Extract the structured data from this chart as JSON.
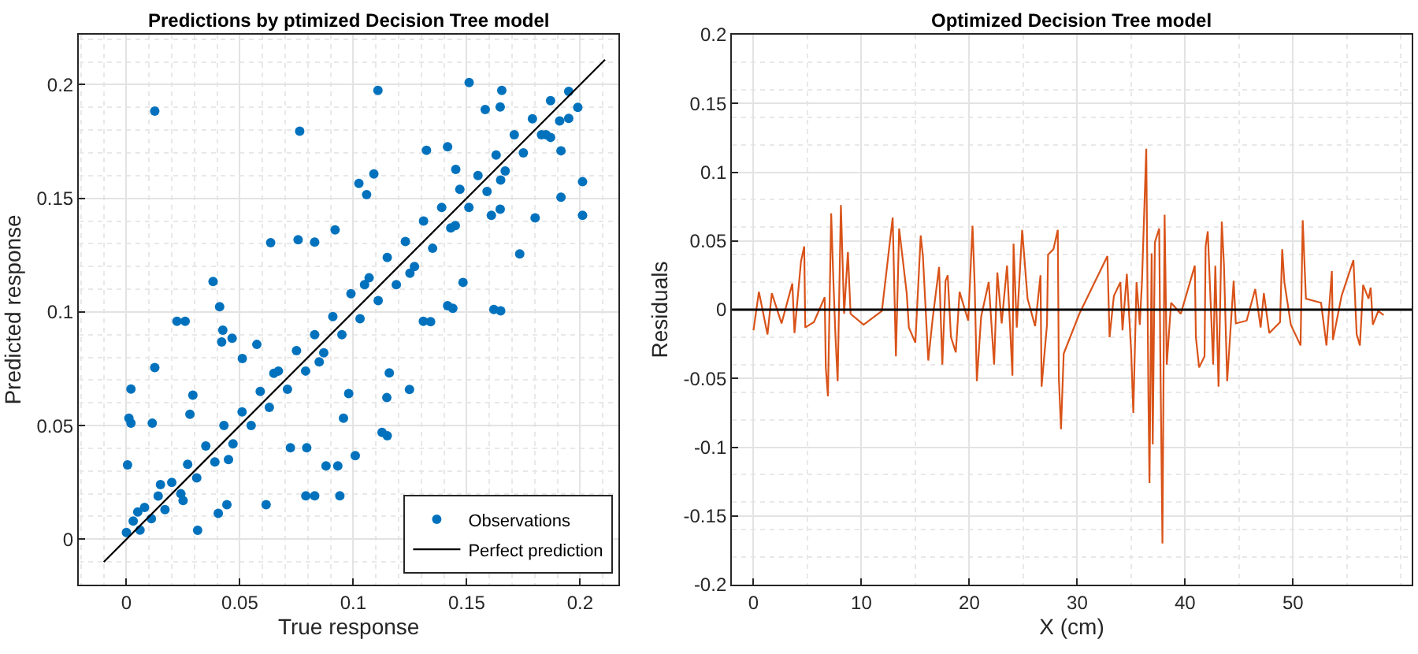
{
  "chart_data": [
    {
      "type": "scatter",
      "title": "Predictions by ptimized Decision Tree model",
      "xlabel": "True response",
      "ylabel": "Predicted response",
      "xlim": [
        -0.021,
        0.217
      ],
      "ylim": [
        -0.02,
        0.222
      ],
      "xticks": [
        0,
        0.05,
        0.1,
        0.15,
        0.2
      ],
      "yticks": [
        0,
        0.05,
        0.1,
        0.15,
        0.2
      ],
      "grid": true,
      "legend": "bottom right",
      "marker": "circle",
      "series": [
        {
          "name": "Observations",
          "color": "#0072bd",
          "x": [
            0.0125,
            0.0764,
            0.1109,
            0.1511,
            0.1655,
            0.0636,
            0.0757,
            0.083,
            0.0382,
            0.0411,
            0.0223,
            0.0259,
            0.0425,
            0.042,
            0.0466,
            0.0511,
            0.0575,
            0.0125,
            0.002,
            0.0011,
            0.002,
            0.0114,
            0.0293,
            0.028,
            0.0005,
            0.0314,
            0.0616,
            0.0443,
            0.0405,
            0.0791,
            0.083,
            0.0941,
            0.088,
            0.0932,
            0.1009,
            0.0723,
            0.0795,
            0.1127,
            0.115,
            0.0957,
            0.098,
            0.1159,
            0.1248,
            0.1148,
            0.1309,
            0.1341,
            0.1416,
            0.1439,
            0.162,
            0.165,
            0.1484,
            0.1734,
            0.1916,
            0.2011,
            0.2011,
            0.1802,
            0.1025,
            0.1091,
            0.1059,
            0.092,
            0.1323,
            0.1416,
            0.1452,
            0.1582,
            0.1648,
            0.187,
            0.1916,
            0.195,
            0.1648,
            0.1609,
            0.0,
            0.003,
            0.006,
            0.008,
            0.011,
            0.014,
            0.017,
            0.02,
            0.024,
            0.027,
            0.031,
            0.035,
            0.039,
            0.043,
            0.047,
            0.051,
            0.055,
            0.059,
            0.063,
            0.067,
            0.071,
            0.075,
            0.079,
            0.083,
            0.087,
            0.091,
            0.095,
            0.099,
            0.103,
            0.107,
            0.111,
            0.115,
            0.119,
            0.123,
            0.127,
            0.131,
            0.135,
            0.139,
            0.143,
            0.147,
            0.151,
            0.155,
            0.159,
            0.163,
            0.167,
            0.171,
            0.175,
            0.179,
            0.183,
            0.187,
            0.191,
            0.195,
            0.199,
            0.005,
            0.015,
            0.025,
            0.045,
            0.065,
            0.085,
            0.105,
            0.125,
            0.145,
            0.165,
            0.185
          ],
          "values": [
            0.1884,
            0.1795,
            0.1975,
            0.2009,
            0.1975,
            0.1305,
            0.1318,
            0.1307,
            0.1134,
            0.1023,
            0.0959,
            0.0959,
            0.092,
            0.0868,
            0.0884,
            0.0795,
            0.0857,
            0.0755,
            0.0661,
            0.0532,
            0.0511,
            0.0511,
            0.0634,
            0.055,
            0.0327,
            0.0039,
            0.0152,
            0.0152,
            0.0114,
            0.0191,
            0.0191,
            0.0191,
            0.0323,
            0.0323,
            0.0368,
            0.0402,
            0.0402,
            0.047,
            0.0455,
            0.0532,
            0.0641,
            0.0732,
            0.0659,
            0.0623,
            0.0959,
            0.0957,
            0.1027,
            0.1016,
            0.1011,
            0.1005,
            0.113,
            0.1255,
            0.1505,
            0.1573,
            0.1425,
            0.1414,
            0.1566,
            0.1607,
            0.1516,
            0.1361,
            0.1711,
            0.1727,
            0.1627,
            0.1891,
            0.1902,
            0.1768,
            0.1709,
            0.1852,
            0.1452,
            0.1425,
            0.003,
            0.008,
            0.004,
            0.014,
            0.009,
            0.019,
            0.013,
            0.025,
            0.02,
            0.033,
            0.027,
            0.041,
            0.034,
            0.05,
            0.042,
            0.056,
            0.05,
            0.065,
            0.058,
            0.074,
            0.066,
            0.083,
            0.074,
            0.09,
            0.082,
            0.098,
            0.09,
            0.108,
            0.097,
            0.115,
            0.105,
            0.124,
            0.112,
            0.131,
            0.12,
            0.14,
            0.128,
            0.146,
            0.137,
            0.154,
            0.146,
            0.16,
            0.153,
            0.169,
            0.162,
            0.178,
            0.17,
            0.185,
            0.178,
            0.193,
            0.184,
            0.197,
            0.19,
            0.012,
            0.024,
            0.017,
            0.035,
            0.073,
            0.078,
            0.112,
            0.117,
            0.138,
            0.158,
            0.178
          ]
        },
        {
          "name": "Perfect prediction",
          "type": "line",
          "marker": "none",
          "color": "#000000",
          "x": [
            -0.01,
            0.211
          ],
          "values": [
            -0.01,
            0.211
          ]
        }
      ]
    },
    {
      "type": "line",
      "title": "Optimized Decision Tree model",
      "xlabel": "X (cm)",
      "ylabel": "Residuals",
      "xlim": [
        -2,
        61
      ],
      "ylim": [
        -0.2,
        0.2
      ],
      "xticks": [
        0,
        10,
        20,
        30,
        40,
        50
      ],
      "yticks": [
        -0.2,
        -0.15,
        -0.1,
        -0.05,
        0,
        0.05,
        0.1,
        0.15,
        0.2
      ],
      "grid": true,
      "ref_lines": [
        {
          "axis": "y",
          "value": 0,
          "color": "#000000"
        }
      ],
      "series": [
        {
          "color": "#d95319",
          "x": [
            0,
            0.5,
            1.3,
            1.7,
            2.6,
            3.6,
            3.8,
            4.4,
            4.7,
            4.8,
            5.6,
            6.6,
            6.7,
            6.9,
            7.2,
            7.4,
            7.6,
            7.8,
            8.1,
            8.4,
            8.75,
            9.0,
            10.2,
            11.9,
            12.9,
            13.2,
            13.5,
            14.2,
            14.4,
            15.0,
            15.5,
            15.7,
            16.2,
            16.6,
            17.2,
            17.5,
            17.8,
            18.0,
            18.3,
            18.75,
            19.1,
            19.9,
            20.3,
            20.5,
            20.7,
            21.1,
            21.8,
            22.3,
            22.6,
            23.0,
            23.5,
            24.0,
            24.1,
            24.4,
            24.9,
            25.4,
            26.1,
            26.6,
            26.7,
            27.2,
            27.3,
            27.8,
            28.2,
            28.3,
            28.5,
            28.75,
            30.2,
            32.8,
            33.0,
            33.4,
            34.0,
            34.2,
            34.6,
            35.0,
            35.2,
            35.5,
            35.8,
            36.0,
            36.4,
            36.6,
            36.7,
            36.9,
            37.0,
            37.2,
            37.6,
            37.7,
            37.9,
            38.1,
            38.3,
            38.7,
            39.6,
            40.9,
            41.0,
            41.3,
            41.8,
            41.9,
            42.1,
            42.6,
            42.8,
            43.1,
            43.4,
            43.6,
            43.9,
            44.5,
            44.7,
            45.7,
            46.5,
            47.0,
            47.3,
            47.8,
            48.8,
            49.0,
            49.2,
            49.8,
            50.7,
            50.9,
            51.2,
            52.6,
            53.1,
            53.6,
            53.7,
            54.5,
            55.6,
            55.9,
            56.2,
            56.5,
            57.0,
            57.2,
            57.4,
            57.9,
            58.4
          ],
          "values": [
            -0.015,
            0.013,
            -0.018,
            0.012,
            -0.01,
            0.019,
            -0.017,
            0.035,
            0.046,
            -0.013,
            -0.009,
            0.009,
            -0.042,
            -0.063,
            0.07,
            0.022,
            -0.02,
            -0.052,
            0.076,
            -0.003,
            0.042,
            -0.003,
            -0.011,
            -0.001,
            0.067,
            -0.034,
            0.059,
            0.012,
            -0.013,
            -0.024,
            0.054,
            0.039,
            -0.037,
            -0.007,
            0.031,
            -0.04,
            0.021,
            0.025,
            -0.02,
            -0.031,
            0.013,
            -0.008,
            0.061,
            0.018,
            -0.052,
            -0.005,
            0.02,
            -0.04,
            0.027,
            -0.01,
            0.032,
            -0.048,
            0.048,
            -0.013,
            0.058,
            0.008,
            -0.012,
            0.025,
            -0.056,
            -0.011,
            0.04,
            0.044,
            0.058,
            -0.05,
            -0.087,
            -0.032,
            -0.003,
            0.039,
            -0.02,
            0.01,
            0.02,
            -0.015,
            0.026,
            -0.03,
            -0.075,
            0.02,
            -0.011,
            0.02,
            0.117,
            -0.063,
            -0.126,
            0.041,
            -0.098,
            0.049,
            0.059,
            -0.03,
            -0.17,
            0.069,
            -0.04,
            0.005,
            -0.003,
            0.032,
            -0.02,
            -0.042,
            -0.034,
            0.046,
            0.057,
            -0.04,
            0.032,
            -0.056,
            0.064,
            0.033,
            -0.052,
            0.021,
            -0.01,
            -0.008,
            0.015,
            -0.013,
            0.012,
            -0.017,
            -0.009,
            0.044,
            0.02,
            -0.011,
            -0.026,
            0.065,
            0.008,
            0.005,
            -0.026,
            0.028,
            -0.022,
            0.01,
            0.036,
            -0.018,
            -0.026,
            0.018,
            0.008,
            0.016,
            -0.011,
            -0.001,
            -0.004
          ]
        }
      ]
    }
  ]
}
